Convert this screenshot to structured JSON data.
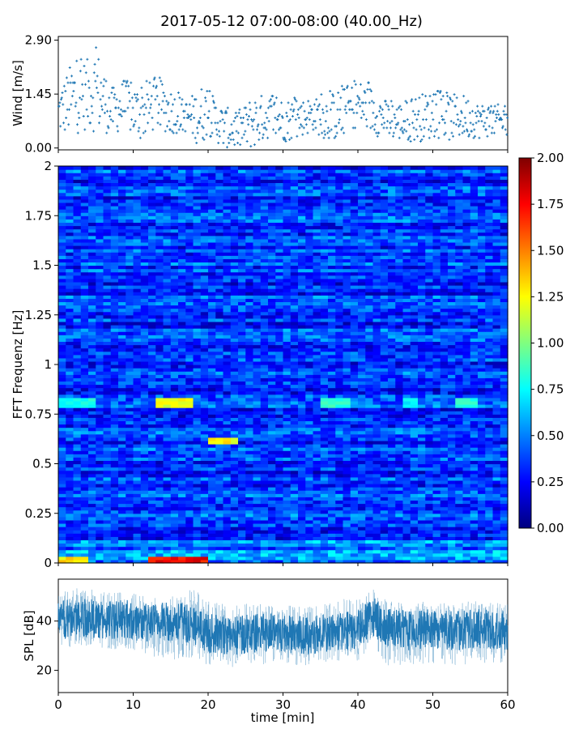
{
  "title": "2017-05-12 07:00-08:00 (40.00_Hz)",
  "chart_data": [
    {
      "type": "scatter",
      "panel": "wind",
      "ylabel": "Wind [m/s]",
      "xlabel": "",
      "xlim": [
        0,
        60
      ],
      "ylim": [
        -0.05,
        3.0
      ],
      "yticks": [
        "0.00",
        "1.45",
        "2.90"
      ],
      "ytick_values": [
        0.0,
        1.45,
        2.9
      ],
      "color": "#1f77b4",
      "marker": "plus",
      "points_per_minute": 12,
      "envelope_minutes": [
        0,
        2,
        4,
        5,
        7,
        9,
        11,
        13,
        15,
        17,
        19,
        20,
        22,
        24,
        26,
        28,
        30,
        32,
        34,
        36,
        38,
        40,
        42,
        44,
        46,
        48,
        50,
        52,
        54,
        56,
        58,
        60
      ],
      "envelope_mean": [
        0.95,
        1.35,
        1.45,
        1.6,
        1.0,
        1.15,
        0.9,
        1.2,
        1.0,
        0.85,
        0.85,
        0.95,
        0.55,
        0.45,
        0.7,
        0.85,
        0.75,
        0.8,
        0.9,
        0.8,
        0.95,
        1.2,
        1.0,
        0.75,
        0.7,
        0.8,
        0.9,
        0.8,
        0.85,
        0.75,
        0.75,
        0.7
      ],
      "envelope_max": [
        1.6,
        2.5,
        2.5,
        2.9,
        1.7,
        1.9,
        1.7,
        2.0,
        1.7,
        1.3,
        1.8,
        1.6,
        1.2,
        1.0,
        1.5,
        1.5,
        1.4,
        1.4,
        1.4,
        1.5,
        1.7,
        1.9,
        1.7,
        1.3,
        1.3,
        1.5,
        1.6,
        1.5,
        1.5,
        1.3,
        1.2,
        1.2
      ]
    },
    {
      "type": "heatmap",
      "panel": "spectrogram",
      "ylabel": "FFT Frequenz [Hz]",
      "xlim": [
        0,
        60
      ],
      "ylim": [
        0,
        2
      ],
      "yticks": [
        "0",
        "0.25",
        "0.5",
        "0.75",
        "1",
        "1.25",
        "1.5",
        "1.75",
        "2"
      ],
      "ytick_values": [
        0,
        0.25,
        0.5,
        0.75,
        1.0,
        1.25,
        1.5,
        1.75,
        2.0
      ],
      "colormap": "jet",
      "vmin": 0.0,
      "vmax": 2.0,
      "colorbar_ticks": [
        "0.00",
        "0.25",
        "0.50",
        "0.75",
        "1.00",
        "1.25",
        "1.50",
        "1.75",
        "2.00"
      ],
      "colorbar_tick_values": [
        0.0,
        0.25,
        0.5,
        0.75,
        1.0,
        1.25,
        1.5,
        1.75,
        2.0
      ],
      "typical_level": 0.35,
      "features": [
        {
          "description_level": 0.85,
          "freq": 0.81,
          "t_start": 0,
          "t_end": 5
        },
        {
          "description_level": 1.3,
          "freq": 0.81,
          "t_start": 13,
          "t_end": 18
        },
        {
          "description_level": 1.35,
          "freq": 0.62,
          "t_start": 20,
          "t_end": 24
        },
        {
          "description_level": 0.9,
          "freq": 0.81,
          "t_start": 35,
          "t_end": 39
        },
        {
          "description_level": 0.8,
          "freq": 0.81,
          "t_start": 46,
          "t_end": 48
        },
        {
          "description_level": 0.9,
          "freq": 0.81,
          "t_start": 53,
          "t_end": 56
        },
        {
          "description_level": 1.9,
          "freq": 0.01,
          "t_start": 12,
          "t_end": 20
        },
        {
          "description_level": 1.4,
          "freq": 0.01,
          "t_start": 0,
          "t_end": 4
        }
      ]
    },
    {
      "type": "line",
      "panel": "spl",
      "ylabel": "SPL [dB]",
      "xlabel": "time [min]",
      "xlim": [
        0,
        60
      ],
      "ylim": [
        11,
        57
      ],
      "yticks": [
        "20",
        "40"
      ],
      "ytick_values": [
        20,
        40
      ],
      "xticks": [
        "0",
        "10",
        "20",
        "30",
        "40",
        "50",
        "60"
      ],
      "xtick_values": [
        0,
        10,
        20,
        30,
        40,
        50,
        60
      ],
      "color": "#1f77b4",
      "envelope_minutes": [
        0,
        3,
        6,
        9,
        12,
        15,
        18,
        20,
        23,
        26,
        29,
        32,
        35,
        38,
        40,
        42,
        44,
        47,
        50,
        53,
        56,
        60
      ],
      "envelope_mean": [
        40,
        42,
        40,
        41,
        39,
        40,
        39,
        35,
        34,
        35,
        36,
        34,
        35,
        36,
        36,
        42,
        37,
        36,
        37,
        36,
        37,
        36
      ],
      "envelope_min": [
        28,
        30,
        29,
        28,
        26,
        24,
        25,
        22,
        21,
        22,
        23,
        22,
        22,
        24,
        24,
        30,
        22,
        22,
        23,
        22,
        23,
        22
      ],
      "envelope_max": [
        52,
        54,
        52,
        53,
        50,
        52,
        54,
        48,
        47,
        47,
        48,
        47,
        47,
        49,
        49,
        53,
        48,
        48,
        48,
        48,
        48,
        47
      ]
    }
  ]
}
